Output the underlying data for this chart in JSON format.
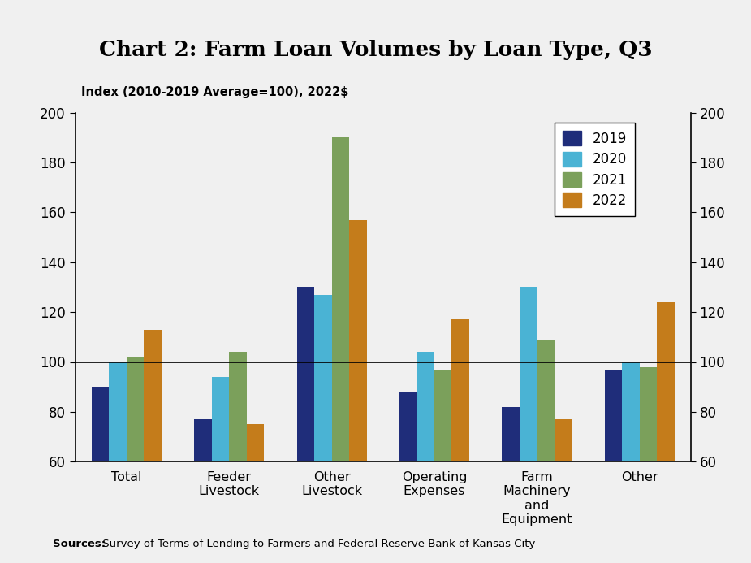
{
  "title": "Chart 2: Farm Loan Volumes by Loan Type, Q3",
  "ylabel": "Index (2010-2019 Average=100), 2022$",
  "categories": [
    "Total",
    "Feeder\nLivestock",
    "Other\nLivestock",
    "Operating\nExpenses",
    "Farm\nMachinery\nand\nEquipment",
    "Other"
  ],
  "years": [
    "2019",
    "2020",
    "2021",
    "2022"
  ],
  "colors": [
    "#1f2d7a",
    "#4ab3d4",
    "#7ba05b",
    "#c47c1b"
  ],
  "data": {
    "2019": [
      90,
      77,
      130,
      88,
      82,
      97
    ],
    "2020": [
      100,
      94,
      127,
      104,
      130,
      100
    ],
    "2021": [
      102,
      104,
      190,
      97,
      109,
      98
    ],
    "2022": [
      113,
      75,
      157,
      117,
      77,
      124
    ]
  },
  "ylim": [
    60,
    200
  ],
  "yticks": [
    60,
    80,
    100,
    120,
    140,
    160,
    180,
    200
  ],
  "source_bold": "Sources:",
  "source_rest": " Survey of Terms of Lending to Farmers and Federal Reserve Bank of Kansas City",
  "bar_width": 0.17,
  "bg_color": "#f0f0f0",
  "plot_bg": "#f0f0f0"
}
